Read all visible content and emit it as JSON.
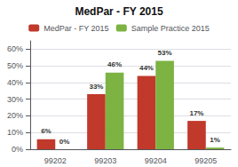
{
  "chart_data": {
    "type": "bar",
    "title": "MedPar - FY 2015",
    "categories": [
      "99202",
      "99203",
      "99204",
      "99205"
    ],
    "series": [
      {
        "name": "MedPar - FY 2015",
        "color": "#C0392B",
        "values": [
          6,
          33,
          44,
          17
        ],
        "value_labels": [
          "6%",
          "33%",
          "44%",
          "17%"
        ]
      },
      {
        "name": "Sample Practice 2015",
        "color": "#7CB342",
        "values": [
          0,
          46,
          53,
          1
        ],
        "value_labels": [
          "0%",
          "46%",
          "53%",
          "1%"
        ]
      }
    ],
    "ylim": [
      0,
      65
    ],
    "yticks": [
      {
        "value": 0,
        "label": "0%"
      },
      {
        "value": 10,
        "label": "10%"
      },
      {
        "value": 20,
        "label": "20%"
      },
      {
        "value": 30,
        "label": "30%"
      },
      {
        "value": 40,
        "label": "40%"
      },
      {
        "value": 50,
        "label": "50%"
      },
      {
        "value": 60,
        "label": "60%"
      }
    ],
    "grid": true,
    "legend": "top",
    "data_labels": true
  }
}
